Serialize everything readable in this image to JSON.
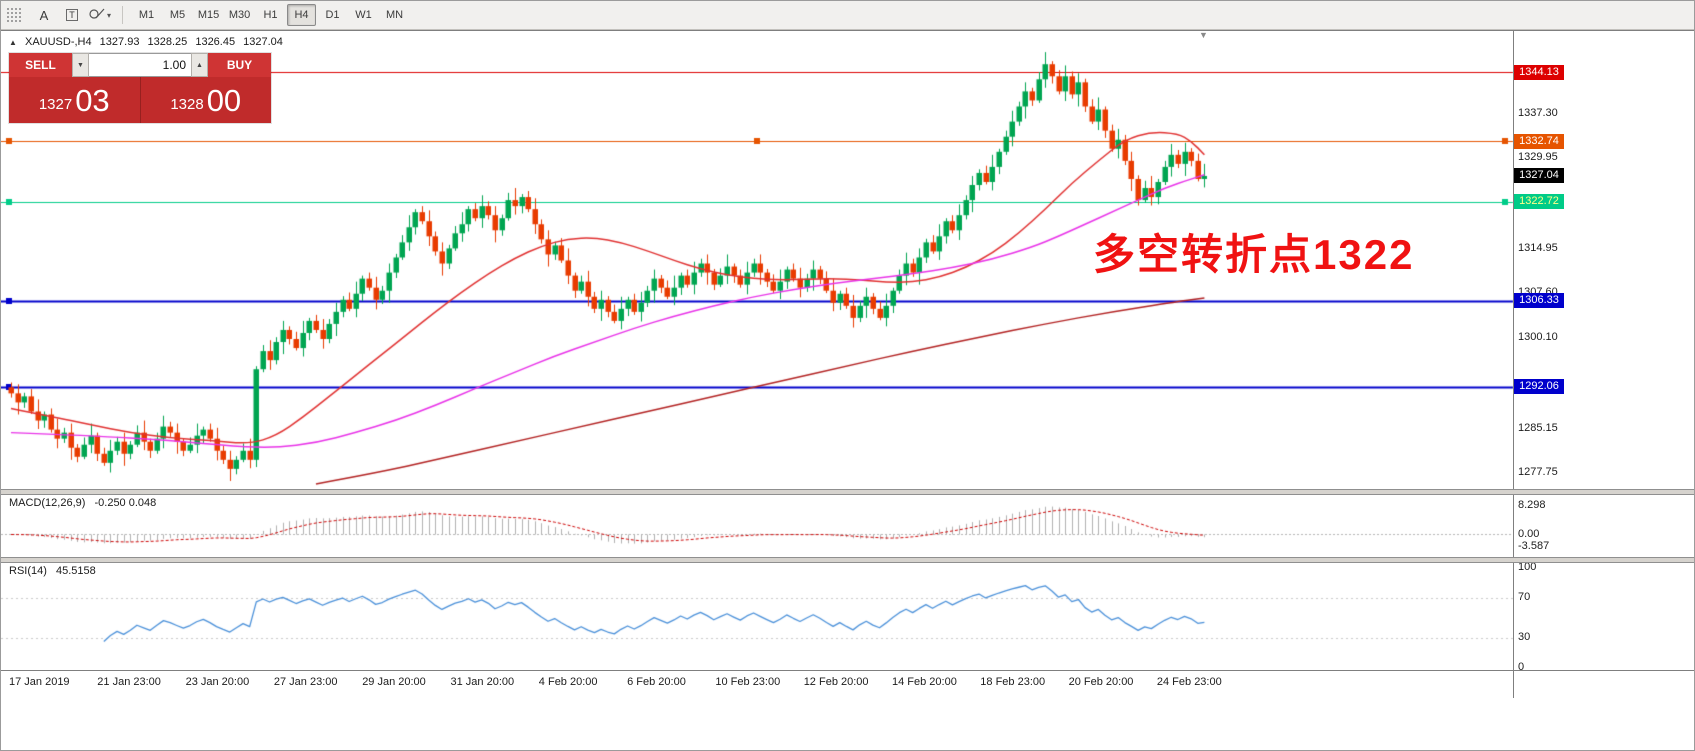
{
  "toolbar": {
    "tools": [
      {
        "name": "toolbar-grid"
      },
      {
        "name": "text-annotation-tool",
        "label": "A"
      },
      {
        "name": "text-label-tool",
        "label": "T"
      },
      {
        "name": "shapes-tool",
        "caret": "▾"
      }
    ],
    "timeframes": [
      "M1",
      "M5",
      "M15",
      "M30",
      "H1",
      "H4",
      "D1",
      "W1",
      "MN"
    ],
    "active_timeframe": "H4"
  },
  "chart_header": {
    "marker": "▲",
    "symbol": "XAUUSD-,H4",
    "open": "1327.93",
    "high": "1328.25",
    "low": "1326.45",
    "close": "1327.04"
  },
  "trade_panel": {
    "sell_label": "SELL",
    "buy_label": "BUY",
    "volume": "1.00",
    "spinner_down": "▼",
    "spinner_up": "▲",
    "sell_price_main": "1327",
    "sell_price_pips": "03",
    "buy_price_main": "1328",
    "buy_price_pips": "00"
  },
  "annotation": {
    "text": "多空转折点1322"
  },
  "indicator_labels": {
    "macd_name": "MACD(12,26,9)",
    "macd_values": "-0.250 0.048",
    "rsi_name": "RSI(14)",
    "rsi_value": "45.5158"
  },
  "chart_data": {
    "type": "candlestick",
    "symbol": "XAUUSD-",
    "timeframe": "H4",
    "ohlc_display": {
      "open": 1327.93,
      "high": 1328.25,
      "low": 1326.45,
      "close": 1327.04
    },
    "ylim": [
      1275,
      1351
    ],
    "first_open": 1292.0,
    "closes": [
      1291.0,
      1289.5,
      1290.5,
      1288.0,
      1286.5,
      1287.5,
      1285.0,
      1283.5,
      1284.5,
      1282.0,
      1280.5,
      1282.5,
      1284.0,
      1281.0,
      1279.5,
      1281.5,
      1283.0,
      1281.0,
      1282.5,
      1284.5,
      1283.0,
      1281.5,
      1283.5,
      1285.5,
      1284.5,
      1283.0,
      1281.5,
      1282.5,
      1284.0,
      1285.0,
      1283.5,
      1281.5,
      1280.0,
      1278.5,
      1280.0,
      1281.5,
      1280.0,
      1295.0,
      1298.0,
      1296.5,
      1299.5,
      1301.5,
      1300.0,
      1298.5,
      1301.0,
      1303.0,
      1301.5,
      1300.0,
      1302.5,
      1304.5,
      1306.5,
      1305.0,
      1307.5,
      1310.0,
      1308.5,
      1306.5,
      1308.0,
      1311.0,
      1313.5,
      1316.0,
      1318.5,
      1321.0,
      1319.5,
      1317.0,
      1314.5,
      1312.5,
      1315.0,
      1317.5,
      1319.0,
      1321.5,
      1320.0,
      1322.0,
      1320.5,
      1318.0,
      1320.0,
      1323.0,
      1322.0,
      1323.5,
      1321.5,
      1319.0,
      1316.5,
      1314.0,
      1315.5,
      1313.0,
      1310.5,
      1308.0,
      1309.5,
      1307.0,
      1305.0,
      1306.5,
      1304.5,
      1303.0,
      1305.0,
      1306.5,
      1304.5,
      1306.0,
      1308.0,
      1310.0,
      1308.5,
      1307.0,
      1308.5,
      1310.5,
      1309.0,
      1311.0,
      1312.5,
      1311.0,
      1309.0,
      1310.5,
      1312.0,
      1310.5,
      1309.0,
      1311.0,
      1312.5,
      1311.0,
      1309.5,
      1308.0,
      1309.5,
      1311.5,
      1310.0,
      1308.5,
      1310.0,
      1311.5,
      1310.0,
      1308.0,
      1306.0,
      1307.5,
      1305.5,
      1303.5,
      1305.5,
      1307.0,
      1305.0,
      1303.5,
      1305.5,
      1308.0,
      1310.5,
      1312.5,
      1311.0,
      1313.5,
      1316.0,
      1314.5,
      1317.0,
      1319.5,
      1318.0,
      1320.5,
      1323.0,
      1325.5,
      1327.5,
      1326.0,
      1328.5,
      1331.0,
      1333.5,
      1336.0,
      1338.5,
      1341.0,
      1339.5,
      1343.0,
      1345.5,
      1343.5,
      1341.0,
      1343.5,
      1340.5,
      1342.5,
      1338.5,
      1336.0,
      1338.0,
      1334.5,
      1331.5,
      1333.0,
      1329.5,
      1326.5,
      1323.0,
      1325.0,
      1323.5,
      1326.0,
      1328.5,
      1330.5,
      1329.0,
      1331.0,
      1329.5,
      1326.5,
      1327.0
    ],
    "wick_up": [
      0.8,
      1.5,
      0.6,
      1.2,
      2.0,
      0.5,
      1.0,
      1.8
    ],
    "wick_down": [
      1.2,
      0.5,
      1.6,
      0.7,
      2.0,
      0.9,
      0.4,
      1.4
    ],
    "up_color": "#00a551",
    "down_color": "#e83b00",
    "moving_averages": [
      {
        "name": "fast-ma",
        "color": "#e03030",
        "points": [
          [
            0,
            1288.5
          ],
          [
            6,
            1287.2
          ],
          [
            12,
            1285.8
          ],
          [
            18,
            1284.5
          ],
          [
            24,
            1283.6
          ],
          [
            30,
            1283.2
          ],
          [
            36,
            1282.6
          ],
          [
            40,
            1284.0
          ],
          [
            44,
            1287.0
          ],
          [
            48,
            1290.5
          ],
          [
            52,
            1294.0
          ],
          [
            56,
            1297.5
          ],
          [
            60,
            1301.0
          ],
          [
            64,
            1304.5
          ],
          [
            68,
            1307.8
          ],
          [
            72,
            1310.8
          ],
          [
            76,
            1313.4
          ],
          [
            80,
            1315.4
          ],
          [
            84,
            1316.6
          ],
          [
            88,
            1316.8
          ],
          [
            92,
            1316.0
          ],
          [
            96,
            1314.6
          ],
          [
            100,
            1313.0
          ],
          [
            104,
            1311.6
          ],
          [
            108,
            1310.6
          ],
          [
            112,
            1310.0
          ],
          [
            116,
            1309.8
          ],
          [
            120,
            1309.9
          ],
          [
            124,
            1310.0
          ],
          [
            128,
            1309.8
          ],
          [
            132,
            1309.4
          ],
          [
            136,
            1309.4
          ],
          [
            140,
            1310.2
          ],
          [
            144,
            1311.8
          ],
          [
            148,
            1314.2
          ],
          [
            152,
            1317.5
          ],
          [
            156,
            1321.5
          ],
          [
            160,
            1325.8
          ],
          [
            164,
            1329.5
          ],
          [
            168,
            1333.0
          ],
          [
            172,
            1334.3
          ],
          [
            176,
            1334.0
          ],
          [
            178,
            1332.8
          ],
          [
            180,
            1330.5
          ]
        ]
      },
      {
        "name": "mid-ma",
        "color": "#e832e8",
        "points": [
          [
            0,
            1284.5
          ],
          [
            12,
            1284.0
          ],
          [
            24,
            1283.2
          ],
          [
            34,
            1282.2
          ],
          [
            40,
            1282.0
          ],
          [
            46,
            1282.8
          ],
          [
            52,
            1284.5
          ],
          [
            58,
            1286.5
          ],
          [
            64,
            1289.0
          ],
          [
            70,
            1291.8
          ],
          [
            76,
            1294.5
          ],
          [
            82,
            1297.2
          ],
          [
            88,
            1299.5
          ],
          [
            94,
            1301.8
          ],
          [
            100,
            1303.8
          ],
          [
            106,
            1305.5
          ],
          [
            112,
            1307.0
          ],
          [
            118,
            1308.2
          ],
          [
            124,
            1309.2
          ],
          [
            130,
            1310.0
          ],
          [
            136,
            1310.8
          ],
          [
            142,
            1311.8
          ],
          [
            148,
            1313.2
          ],
          [
            154,
            1315.2
          ],
          [
            158,
            1317.0
          ],
          [
            162,
            1319.0
          ],
          [
            166,
            1321.0
          ],
          [
            170,
            1323.0
          ],
          [
            174,
            1325.0
          ],
          [
            178,
            1326.5
          ],
          [
            180,
            1327.2
          ]
        ]
      },
      {
        "name": "slow-ma",
        "color": "#b22222",
        "points": [
          [
            46,
            1276.0
          ],
          [
            56,
            1278.0
          ],
          [
            66,
            1280.5
          ],
          [
            76,
            1283.0
          ],
          [
            86,
            1285.5
          ],
          [
            96,
            1288.0
          ],
          [
            106,
            1290.5
          ],
          [
            116,
            1293.0
          ],
          [
            126,
            1295.5
          ],
          [
            136,
            1298.0
          ],
          [
            146,
            1300.3
          ],
          [
            156,
            1302.5
          ],
          [
            166,
            1304.5
          ],
          [
            176,
            1306.2
          ],
          [
            180,
            1306.8
          ]
        ]
      }
    ],
    "levels": [
      {
        "price": 1344.13,
        "label": "1344.13",
        "color": "#dd0000",
        "text_color": "#ffffff",
        "line_width": 1,
        "handles": []
      },
      {
        "price": 1332.74,
        "label": "1332.74",
        "color": "#e65400",
        "text_color": "#ffffff",
        "line_width": 1,
        "handles": [
          "left",
          "center",
          "right"
        ]
      },
      {
        "price": 1327.04,
        "label": "1327.04",
        "color": "#000000",
        "text_color": "#ffffff",
        "line_width": 0,
        "handles": []
      },
      {
        "price": 1322.72,
        "label": "1322.72",
        "color": "#00cc88",
        "text_color": "#ffff88",
        "line_width": 1,
        "handles": [
          "left",
          "right"
        ]
      },
      {
        "price": 1306.33,
        "label": "1306.33",
        "color": "#0000cc",
        "text_color": "#ffffff",
        "line_width": 2,
        "handles": [
          "left"
        ]
      },
      {
        "price": 1292.06,
        "label": "1292.06",
        "color": "#0000cc",
        "text_color": "#ffffff",
        "line_width": 2,
        "handles": [
          "left"
        ]
      }
    ],
    "y_ticks": [
      "1337.30",
      "1329.95",
      "1314.95",
      "1307.60",
      "1300.10",
      "1285.15",
      "1277.75"
    ],
    "time_labels": [
      "17 Jan 2019",
      "21 Jan 23:00",
      "23 Jan 20:00",
      "27 Jan 23:00",
      "29 Jan 20:00",
      "31 Jan 20:00",
      "4 Feb 20:00",
      "6 Feb 20:00",
      "10 Feb 23:00",
      "12 Feb 20:00",
      "14 Feb 20:00",
      "18 Feb 23:00",
      "20 Feb 20:00",
      "24 Feb 23:00"
    ],
    "macd": {
      "fast": 12,
      "slow": 26,
      "signal_period": 9,
      "main": -0.25,
      "signal": 0.048,
      "axis": [
        "8.298",
        "0.00",
        "-3.587"
      ],
      "hist_color": "#b0b0b0",
      "signal_color": "#cc0000"
    },
    "rsi": {
      "period": 14,
      "value": 45.5158,
      "axis": [
        "100",
        "70",
        "30",
        "0"
      ],
      "levels": [
        70,
        30
      ],
      "color": "#4a90d9"
    }
  }
}
